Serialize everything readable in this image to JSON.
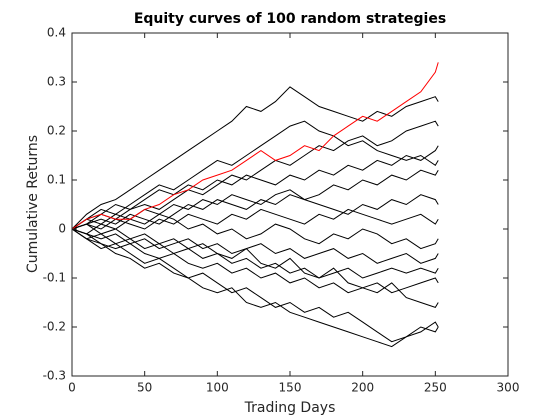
{
  "chart_data": {
    "type": "line",
    "title": "Equity curves of 100 random strategies",
    "x_label": "Trading Days",
    "y_label": "Cumulative Returns",
    "x": [
      0,
      10,
      20,
      30,
      40,
      50,
      60,
      70,
      80,
      90,
      100,
      110,
      120,
      130,
      140,
      150,
      160,
      170,
      180,
      190,
      200,
      210,
      220,
      230,
      240,
      250,
      252
    ],
    "xlim": [
      0,
      300
    ],
    "xticks": [
      0,
      50,
      100,
      150,
      200,
      250,
      300
    ],
    "ylim": [
      -0.3,
      0.4
    ],
    "yticks": [
      -0.3,
      -0.2,
      -0.1,
      0,
      0.1,
      0.2,
      0.3,
      0.4
    ],
    "series": [
      {
        "color": "#000000",
        "values": [
          0,
          0.03,
          0.05,
          0.06,
          0.08,
          0.1,
          0.12,
          0.14,
          0.16,
          0.18,
          0.2,
          0.22,
          0.25,
          0.24,
          0.26,
          0.29,
          0.27,
          0.25,
          0.24,
          0.23,
          0.22,
          0.24,
          0.23,
          0.25,
          0.26,
          0.27,
          0.26
        ]
      },
      {
        "color": "#000000",
        "values": [
          0,
          -0.02,
          -0.03,
          -0.05,
          -0.06,
          -0.08,
          -0.07,
          -0.09,
          -0.1,
          -0.12,
          -0.13,
          -0.12,
          -0.15,
          -0.16,
          -0.15,
          -0.17,
          -0.18,
          -0.19,
          -0.2,
          -0.21,
          -0.22,
          -0.23,
          -0.24,
          -0.22,
          -0.21,
          -0.19,
          -0.2
        ]
      },
      {
        "color": "#000000",
        "values": [
          0,
          0.01,
          0.03,
          0.02,
          0.04,
          0.05,
          0.04,
          0.06,
          0.08,
          0.07,
          0.09,
          0.11,
          0.1,
          0.12,
          0.14,
          0.13,
          0.15,
          0.17,
          0.16,
          0.18,
          0.19,
          0.17,
          0.18,
          0.2,
          0.21,
          0.22,
          0.21
        ]
      },
      {
        "color": "#000000",
        "values": [
          0,
          -0.01,
          0.01,
          0,
          -0.02,
          -0.01,
          -0.03,
          -0.02,
          -0.04,
          -0.03,
          -0.05,
          -0.06,
          -0.04,
          -0.07,
          -0.08,
          -0.06,
          -0.09,
          -0.1,
          -0.08,
          -0.11,
          -0.12,
          -0.13,
          -0.11,
          -0.14,
          -0.15,
          -0.16,
          -0.15
        ]
      },
      {
        "color": "#000000",
        "values": [
          0,
          0.02,
          0.01,
          0.03,
          0.02,
          0.04,
          0.03,
          0.05,
          0.04,
          0.06,
          0.05,
          0.07,
          0.06,
          0.05,
          0.07,
          0.08,
          0.06,
          0.07,
          0.09,
          0.08,
          0.1,
          0.09,
          0.11,
          0.1,
          0.12,
          0.11,
          0.12
        ]
      },
      {
        "color": "#000000",
        "values": [
          0,
          -0.01,
          -0.02,
          -0.01,
          -0.03,
          -0.02,
          -0.04,
          -0.03,
          -0.02,
          -0.04,
          -0.03,
          -0.05,
          -0.04,
          -0.03,
          -0.05,
          -0.04,
          -0.06,
          -0.05,
          -0.04,
          -0.06,
          -0.05,
          -0.07,
          -0.06,
          -0.05,
          -0.07,
          -0.06,
          -0.05
        ]
      },
      {
        "color": "#000000",
        "values": [
          0,
          0.01,
          0,
          0.02,
          0.01,
          0,
          0.02,
          0.01,
          0.03,
          0.02,
          0.01,
          0.03,
          0.02,
          0.04,
          0.03,
          0.02,
          0.01,
          0.03,
          0.02,
          0.04,
          0.03,
          0.02,
          0.01,
          0.02,
          0.03,
          0.01,
          0.02
        ]
      },
      {
        "color": "#000000",
        "values": [
          0,
          -0.02,
          -0.04,
          -0.03,
          -0.05,
          -0.07,
          -0.06,
          -0.08,
          -0.1,
          -0.09,
          -0.11,
          -0.13,
          -0.12,
          -0.14,
          -0.16,
          -0.15,
          -0.17,
          -0.16,
          -0.18,
          -0.17,
          -0.19,
          -0.21,
          -0.23,
          -0.22,
          -0.2,
          -0.21,
          -0.2
        ]
      },
      {
        "color": "#000000",
        "values": [
          0,
          0.02,
          0.04,
          0.03,
          0.05,
          0.07,
          0.09,
          0.08,
          0.1,
          0.12,
          0.14,
          0.13,
          0.15,
          0.17,
          0.19,
          0.21,
          0.22,
          0.2,
          0.19,
          0.17,
          0.18,
          0.16,
          0.15,
          0.14,
          0.15,
          0.13,
          0.14
        ]
      },
      {
        "color": "#000000",
        "values": [
          0,
          0.01,
          -0.01,
          0,
          0.02,
          0.01,
          0.03,
          0.02,
          0,
          0.01,
          -0.01,
          0,
          -0.02,
          -0.01,
          0.01,
          0,
          -0.02,
          -0.03,
          -0.01,
          -0.02,
          0,
          -0.01,
          -0.03,
          -0.02,
          -0.04,
          -0.03,
          -0.02
        ]
      },
      {
        "color": "#000000",
        "values": [
          0,
          -0.01,
          -0.03,
          -0.04,
          -0.03,
          -0.05,
          -0.06,
          -0.05,
          -0.07,
          -0.08,
          -0.07,
          -0.09,
          -0.08,
          -0.1,
          -0.09,
          -0.11,
          -0.1,
          -0.12,
          -0.11,
          -0.13,
          -0.12,
          -0.11,
          -0.13,
          -0.12,
          -0.11,
          -0.1,
          -0.11
        ]
      },
      {
        "color": "#000000",
        "values": [
          0,
          0.02,
          0.03,
          0.05,
          0.04,
          0.06,
          0.08,
          0.07,
          0.09,
          0.08,
          0.1,
          0.09,
          0.11,
          0.1,
          0.09,
          0.11,
          0.1,
          0.12,
          0.11,
          0.13,
          0.12,
          0.14,
          0.13,
          0.15,
          0.14,
          0.16,
          0.17
        ]
      },
      {
        "color": "#000000",
        "values": [
          0,
          0.01,
          0.02,
          0.01,
          0.03,
          0.02,
          0.01,
          0.03,
          0.05,
          0.04,
          0.06,
          0.05,
          0.04,
          0.06,
          0.05,
          0.07,
          0.06,
          0.05,
          0.04,
          0.03,
          0.05,
          0.04,
          0.06,
          0.05,
          0.07,
          0.06,
          0.05
        ]
      },
      {
        "color": "#000000",
        "values": [
          0,
          -0.02,
          -0.01,
          -0.03,
          -0.02,
          -0.04,
          -0.03,
          -0.05,
          -0.04,
          -0.06,
          -0.05,
          -0.07,
          -0.06,
          -0.08,
          -0.07,
          -0.09,
          -0.08,
          -0.1,
          -0.09,
          -0.08,
          -0.1,
          -0.09,
          -0.08,
          -0.09,
          -0.08,
          -0.09,
          -0.08
        ]
      },
      {
        "color": "#ff0000",
        "values": [
          0,
          0.02,
          0.03,
          0.02,
          0.02,
          0.04,
          0.05,
          0.07,
          0.08,
          0.1,
          0.11,
          0.12,
          0.14,
          0.16,
          0.14,
          0.15,
          0.17,
          0.16,
          0.19,
          0.21,
          0.23,
          0.22,
          0.24,
          0.26,
          0.28,
          0.32,
          0.34
        ]
      }
    ]
  }
}
